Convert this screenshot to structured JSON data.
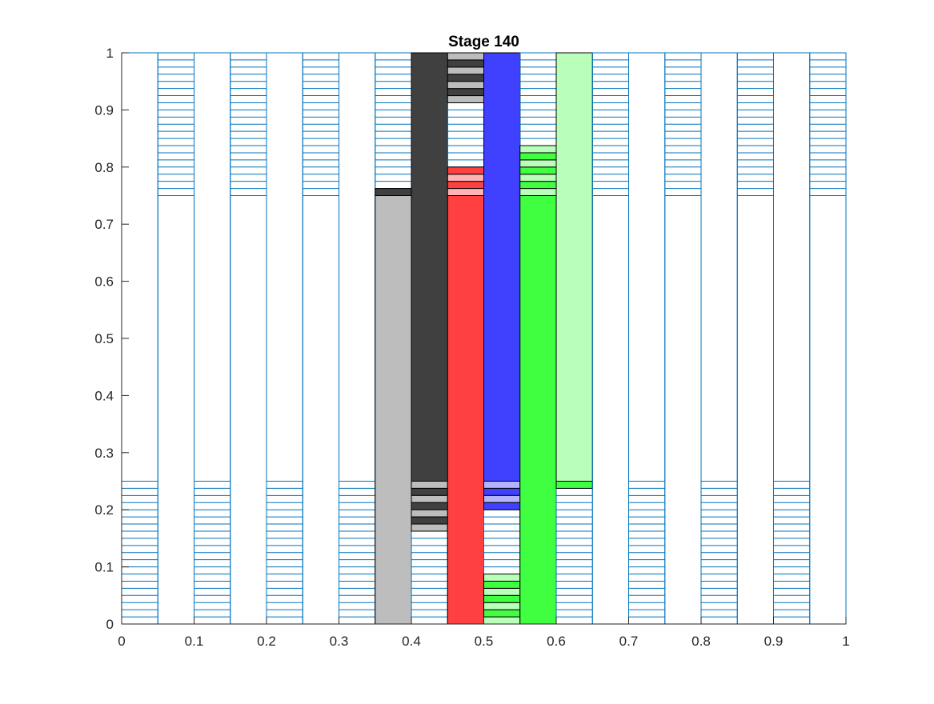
{
  "chart_data": {
    "type": "bar",
    "title": "Stage 140",
    "xlabel": "",
    "ylabel": "",
    "xlim": [
      0,
      1
    ],
    "ylim": [
      0,
      1
    ],
    "grid": false,
    "legend": "none",
    "xticks": [
      "0",
      "0.1",
      "0.2",
      "0.3",
      "0.4",
      "0.5",
      "0.6",
      "0.7",
      "0.8",
      "0.9",
      "1"
    ],
    "yticks": [
      "0",
      "0.1",
      "0.2",
      "0.3",
      "0.4",
      "0.5",
      "0.6",
      "0.7",
      "0.8",
      "0.9",
      "1"
    ],
    "colors": {
      "outline": "#0072BD",
      "light_gray": "#BDBDBD",
      "dark_gray": "#404040",
      "red": "#FF4040",
      "light_red": "#FFB3B3",
      "blue": "#4040FF",
      "light_blue": "#B3B3FF",
      "green": "#40FF40",
      "light_green": "#B9FFB9"
    },
    "columns": [
      {
        "x": [
          0.0,
          0.05
        ],
        "hatch": [
          0.0,
          0.25
        ],
        "solid": []
      },
      {
        "x": [
          0.05,
          0.1
        ],
        "hatch": [
          0.75,
          1.0
        ],
        "solid": []
      },
      {
        "x": [
          0.1,
          0.15
        ],
        "hatch": [
          0.0,
          0.25
        ],
        "solid": []
      },
      {
        "x": [
          0.15,
          0.2
        ],
        "hatch": [
          0.75,
          1.0
        ],
        "solid": []
      },
      {
        "x": [
          0.2,
          0.25
        ],
        "hatch": [
          0.0,
          0.25
        ],
        "solid": []
      },
      {
        "x": [
          0.25,
          0.3
        ],
        "hatch": [
          0.75,
          1.0
        ],
        "solid": []
      },
      {
        "x": [
          0.3,
          0.35
        ],
        "hatch": [
          0.0,
          0.25
        ],
        "solid": []
      },
      {
        "x": [
          0.35,
          0.4
        ],
        "hatch": [
          0.75,
          1.0
        ],
        "solid": [
          {
            "y": [
              0.0,
              0.75
            ],
            "color": "light_gray"
          },
          {
            "y": [
              0.75,
              0.7625
            ],
            "color": "dark_gray"
          }
        ]
      },
      {
        "x": [
          0.4,
          0.45
        ],
        "hatch": [
          0.0,
          0.25
        ],
        "solid": [
          {
            "y": [
              0.25,
              1.0
            ],
            "color": "dark_gray"
          },
          {
            "y": [
              0.2375,
              0.25
            ],
            "color": "light_gray"
          },
          {
            "y": [
              0.225,
              0.2375
            ],
            "color": "dark_gray"
          },
          {
            "y": [
              0.2125,
              0.225
            ],
            "color": "light_gray"
          },
          {
            "y": [
              0.2,
              0.2125
            ],
            "color": "dark_gray"
          },
          {
            "y": [
              0.1875,
              0.2
            ],
            "color": "light_gray"
          },
          {
            "y": [
              0.175,
              0.1875
            ],
            "color": "dark_gray"
          },
          {
            "y": [
              0.1625,
              0.175
            ],
            "color": "light_gray"
          }
        ]
      },
      {
        "x": [
          0.45,
          0.5
        ],
        "hatch": [
          0.75,
          1.0
        ],
        "solid": [
          {
            "y": [
              0.0,
              0.75
            ],
            "color": "red"
          },
          {
            "y": [
              0.75,
              0.7625
            ],
            "color": "light_red"
          },
          {
            "y": [
              0.7625,
              0.775
            ],
            "color": "red"
          },
          {
            "y": [
              0.775,
              0.7875
            ],
            "color": "light_red"
          },
          {
            "y": [
              0.7875,
              0.8
            ],
            "color": "red"
          },
          {
            "y": [
              0.9125,
              0.925
            ],
            "color": "light_gray"
          },
          {
            "y": [
              0.925,
              0.9375
            ],
            "color": "dark_gray"
          },
          {
            "y": [
              0.9375,
              0.95
            ],
            "color": "light_gray"
          },
          {
            "y": [
              0.95,
              0.9625
            ],
            "color": "dark_gray"
          },
          {
            "y": [
              0.9625,
              0.975
            ],
            "color": "light_gray"
          },
          {
            "y": [
              0.975,
              0.9875
            ],
            "color": "dark_gray"
          },
          {
            "y": [
              0.9875,
              1.0
            ],
            "color": "light_gray"
          }
        ]
      },
      {
        "x": [
          0.5,
          0.55
        ],
        "hatch": [
          0.0,
          0.25
        ],
        "solid": [
          {
            "y": [
              0.25,
              1.0
            ],
            "color": "blue"
          },
          {
            "y": [
              0.2375,
              0.25
            ],
            "color": "light_blue"
          },
          {
            "y": [
              0.225,
              0.2375
            ],
            "color": "blue"
          },
          {
            "y": [
              0.2125,
              0.225
            ],
            "color": "light_blue"
          },
          {
            "y": [
              0.2,
              0.2125
            ],
            "color": "blue"
          },
          {
            "y": [
              0.0,
              0.0125
            ],
            "color": "light_green"
          },
          {
            "y": [
              0.0125,
              0.025
            ],
            "color": "green"
          },
          {
            "y": [
              0.025,
              0.0375
            ],
            "color": "light_green"
          },
          {
            "y": [
              0.0375,
              0.05
            ],
            "color": "green"
          },
          {
            "y": [
              0.05,
              0.0625
            ],
            "color": "light_green"
          },
          {
            "y": [
              0.0625,
              0.075
            ],
            "color": "green"
          },
          {
            "y": [
              0.075,
              0.0875
            ],
            "color": "light_green"
          }
        ]
      },
      {
        "x": [
          0.55,
          0.6
        ],
        "hatch": [
          0.75,
          1.0
        ],
        "solid": [
          {
            "y": [
              0.0,
              0.75
            ],
            "color": "green"
          },
          {
            "y": [
              0.75,
              0.7625
            ],
            "color": "light_green"
          },
          {
            "y": [
              0.7625,
              0.775
            ],
            "color": "green"
          },
          {
            "y": [
              0.775,
              0.7875
            ],
            "color": "light_green"
          },
          {
            "y": [
              0.7875,
              0.8
            ],
            "color": "green"
          },
          {
            "y": [
              0.8,
              0.8125
            ],
            "color": "light_green"
          },
          {
            "y": [
              0.8125,
              0.825
            ],
            "color": "green"
          },
          {
            "y": [
              0.825,
              0.8375
            ],
            "color": "light_green"
          }
        ]
      },
      {
        "x": [
          0.6,
          0.65
        ],
        "hatch": [
          0.0,
          0.25
        ],
        "solid": [
          {
            "y": [
              0.25,
              1.0
            ],
            "color": "light_green"
          },
          {
            "y": [
              0.2375,
              0.25
            ],
            "color": "green"
          }
        ]
      },
      {
        "x": [
          0.65,
          0.7
        ],
        "hatch": [
          0.75,
          1.0
        ],
        "solid": []
      },
      {
        "x": [
          0.7,
          0.75
        ],
        "hatch": [
          0.0,
          0.25
        ],
        "solid": []
      },
      {
        "x": [
          0.75,
          0.8
        ],
        "hatch": [
          0.75,
          1.0
        ],
        "solid": []
      },
      {
        "x": [
          0.8,
          0.85
        ],
        "hatch": [
          0.0,
          0.25
        ],
        "solid": []
      },
      {
        "x": [
          0.85,
          0.9
        ],
        "hatch": [
          0.75,
          1.0
        ],
        "solid": []
      },
      {
        "x": [
          0.9,
          0.95
        ],
        "hatch": [
          0.0,
          0.25
        ],
        "solid": []
      },
      {
        "x": [
          0.95,
          1.0
        ],
        "hatch": [
          0.75,
          1.0
        ],
        "solid": []
      }
    ]
  }
}
